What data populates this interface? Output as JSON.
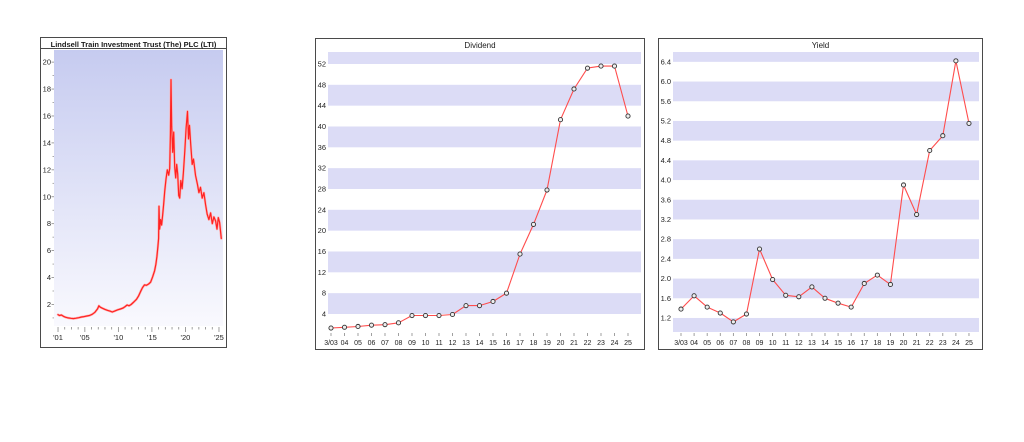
{
  "colors": {
    "page_background": "#ffffff",
    "box_border": "#4a4a4a",
    "stripe": "#dcdcf6",
    "gradient_top": "#c6cbf0",
    "gradient_bottom": "#f9f9fe",
    "price_line": "#ff2222",
    "price_halo": "#ffb0b0",
    "series_line": "#ff4d4d",
    "marker_stroke": "#333333",
    "marker_fill": "#eeeeee",
    "tick": "#888888",
    "label": "#222222"
  },
  "chart_data": [
    {
      "id": "price",
      "type": "line",
      "title": "Lindsell Train Investment Trust (The) PLC (LTI)",
      "xlabel": "",
      "ylabel": "",
      "legend": "none",
      "grid": "off",
      "background": "vertical-gradient",
      "ylim": [
        0.4,
        20.9
      ],
      "xlim": [
        2000.4,
        2025.6
      ],
      "y_ticks": [
        2,
        4,
        6,
        8,
        10,
        12,
        14,
        16,
        18,
        20
      ],
      "y_minor_ticks": [
        1,
        3,
        5,
        7,
        9,
        11,
        13,
        15,
        17,
        19
      ],
      "x_major_ticks": [
        2001,
        2005,
        2010,
        2015,
        2020,
        2025
      ],
      "x_tick_labels": [
        "'01",
        "'05",
        "'10",
        "'15",
        "'20",
        "'25"
      ],
      "x_minor_tick_start": 2001,
      "x_minor_tick_end": 2025,
      "series": [
        {
          "name": "share-price",
          "points": [
            [
              2001.0,
              1.25
            ],
            [
              2001.2,
              1.18
            ],
            [
              2001.5,
              1.22
            ],
            [
              2001.8,
              1.12
            ],
            [
              2002.1,
              1.05
            ],
            [
              2002.5,
              1.0
            ],
            [
              2002.9,
              0.97
            ],
            [
              2003.3,
              0.95
            ],
            [
              2003.7,
              0.98
            ],
            [
              2004.1,
              1.02
            ],
            [
              2004.5,
              1.07
            ],
            [
              2004.9,
              1.1
            ],
            [
              2005.3,
              1.14
            ],
            [
              2005.7,
              1.18
            ],
            [
              2006.1,
              1.27
            ],
            [
              2006.5,
              1.42
            ],
            [
              2006.9,
              1.68
            ],
            [
              2007.1,
              1.9
            ],
            [
              2007.3,
              1.8
            ],
            [
              2007.6,
              1.72
            ],
            [
              2008.0,
              1.63
            ],
            [
              2008.4,
              1.56
            ],
            [
              2008.8,
              1.5
            ],
            [
              2009.1,
              1.44
            ],
            [
              2009.5,
              1.52
            ],
            [
              2009.9,
              1.6
            ],
            [
              2010.3,
              1.66
            ],
            [
              2010.7,
              1.74
            ],
            [
              2011.0,
              1.84
            ],
            [
              2011.3,
              1.96
            ],
            [
              2011.6,
              1.9
            ],
            [
              2011.9,
              2.0
            ],
            [
              2012.3,
              2.18
            ],
            [
              2012.7,
              2.38
            ],
            [
              2013.0,
              2.62
            ],
            [
              2013.3,
              2.95
            ],
            [
              2013.6,
              3.25
            ],
            [
              2013.9,
              3.45
            ],
            [
              2014.2,
              3.42
            ],
            [
              2014.5,
              3.52
            ],
            [
              2014.8,
              3.65
            ],
            [
              2015.1,
              4.05
            ],
            [
              2015.4,
              4.5
            ],
            [
              2015.6,
              5.0
            ],
            [
              2015.75,
              5.55
            ],
            [
              2015.9,
              6.3
            ],
            [
              2016.0,
              6.9
            ],
            [
              2016.05,
              9.3
            ],
            [
              2016.15,
              7.6
            ],
            [
              2016.3,
              8.3
            ],
            [
              2016.45,
              7.9
            ],
            [
              2016.6,
              8.6
            ],
            [
              2016.75,
              9.4
            ],
            [
              2016.9,
              10.4
            ],
            [
              2017.1,
              11.3
            ],
            [
              2017.3,
              12.0
            ],
            [
              2017.5,
              11.6
            ],
            [
              2017.65,
              12.1
            ],
            [
              2017.75,
              14.6
            ],
            [
              2017.85,
              18.7
            ],
            [
              2017.95,
              15.2
            ],
            [
              2018.1,
              13.3
            ],
            [
              2018.25,
              14.8
            ],
            [
              2018.4,
              12.2
            ],
            [
              2018.55,
              11.4
            ],
            [
              2018.7,
              12.4
            ],
            [
              2018.85,
              11.7
            ],
            [
              2019.0,
              10.1
            ],
            [
              2019.15,
              9.9
            ],
            [
              2019.3,
              11.2
            ],
            [
              2019.5,
              10.6
            ],
            [
              2019.7,
              11.8
            ],
            [
              2019.9,
              13.4
            ],
            [
              2020.1,
              15.1
            ],
            [
              2020.3,
              16.35
            ],
            [
              2020.45,
              14.3
            ],
            [
              2020.6,
              15.3
            ],
            [
              2020.8,
              13.8
            ],
            [
              2021.0,
              12.4
            ],
            [
              2021.2,
              12.8
            ],
            [
              2021.5,
              11.6
            ],
            [
              2021.8,
              10.9
            ],
            [
              2022.0,
              10.3
            ],
            [
              2022.25,
              10.7
            ],
            [
              2022.5,
              9.9
            ],
            [
              2022.75,
              10.3
            ],
            [
              2023.0,
              9.4
            ],
            [
              2023.25,
              8.7
            ],
            [
              2023.5,
              8.3
            ],
            [
              2023.75,
              8.8
            ],
            [
              2024.0,
              8.0
            ],
            [
              2024.25,
              8.5
            ],
            [
              2024.5,
              8.2
            ],
            [
              2024.7,
              7.6
            ],
            [
              2024.9,
              8.45
            ],
            [
              2025.1,
              8.1
            ],
            [
              2025.35,
              6.9
            ]
          ]
        }
      ]
    },
    {
      "id": "dividend",
      "type": "line",
      "title": "Dividend",
      "xlabel": "",
      "ylabel": "",
      "legend": "none",
      "grid": "stripes",
      "markers": true,
      "ylim": [
        0.54,
        54.3
      ],
      "y_ticks": [
        4,
        8,
        12,
        16,
        20,
        24,
        28,
        32,
        36,
        40,
        44,
        48,
        52
      ],
      "y_tick_labels": [
        "4",
        "8",
        "12",
        "16",
        "20",
        "24",
        "28",
        "32",
        "36",
        "40",
        "44",
        "48",
        "52"
      ],
      "stripe_bands": [
        [
          4,
          8
        ],
        [
          12,
          16
        ],
        [
          20,
          24
        ],
        [
          28,
          32
        ],
        [
          36,
          40
        ],
        [
          44,
          48
        ],
        [
          52,
          56
        ]
      ],
      "categories": [
        "3/03",
        "04",
        "05",
        "06",
        "07",
        "08",
        "09",
        "10",
        "11",
        "12",
        "13",
        "14",
        "15",
        "16",
        "17",
        "18",
        "19",
        "20",
        "21",
        "22",
        "23",
        "24",
        "25"
      ],
      "values": [
        1.3,
        1.45,
        1.6,
        1.85,
        1.95,
        2.3,
        3.7,
        3.7,
        3.7,
        3.9,
        5.6,
        5.6,
        6.4,
        8.0,
        15.5,
        21.2,
        27.8,
        41.3,
        47.2,
        51.2,
        51.6,
        51.6,
        42.0
      ]
    },
    {
      "id": "yield",
      "type": "line",
      "title": "Yield",
      "xlabel": "",
      "ylabel": "",
      "legend": "none",
      "grid": "stripes",
      "markers": true,
      "ylim": [
        0.915,
        6.6
      ],
      "y_ticks": [
        1.2,
        1.6,
        2.0,
        2.4,
        2.8,
        3.2,
        3.6,
        4.0,
        4.4,
        4.8,
        5.2,
        5.6,
        6.0,
        6.4
      ],
      "y_tick_labels": [
        "1.2",
        "1.6",
        "2.0",
        "2.4",
        "2.8",
        "3.2",
        "3.6",
        "4.0",
        "4.4",
        "4.8",
        "5.2",
        "5.6",
        "6.0",
        "6.4"
      ],
      "stripe_bands": [
        [
          0.8,
          1.2
        ],
        [
          1.6,
          2.0
        ],
        [
          2.4,
          2.8
        ],
        [
          3.2,
          3.6
        ],
        [
          4.0,
          4.4
        ],
        [
          4.8,
          5.2
        ],
        [
          5.6,
          6.0
        ],
        [
          6.4,
          6.8
        ]
      ],
      "categories": [
        "3/03",
        "04",
        "05",
        "06",
        "07",
        "08",
        "09",
        "10",
        "11",
        "12",
        "13",
        "14",
        "15",
        "16",
        "17",
        "18",
        "19",
        "20",
        "21",
        "22",
        "23",
        "24",
        "25"
      ],
      "values": [
        1.38,
        1.65,
        1.42,
        1.3,
        1.12,
        1.28,
        2.6,
        1.98,
        1.66,
        1.63,
        1.83,
        1.6,
        1.5,
        1.42,
        1.9,
        2.07,
        1.88,
        3.9,
        3.3,
        4.6,
        4.9,
        6.42,
        5.15
      ]
    }
  ]
}
